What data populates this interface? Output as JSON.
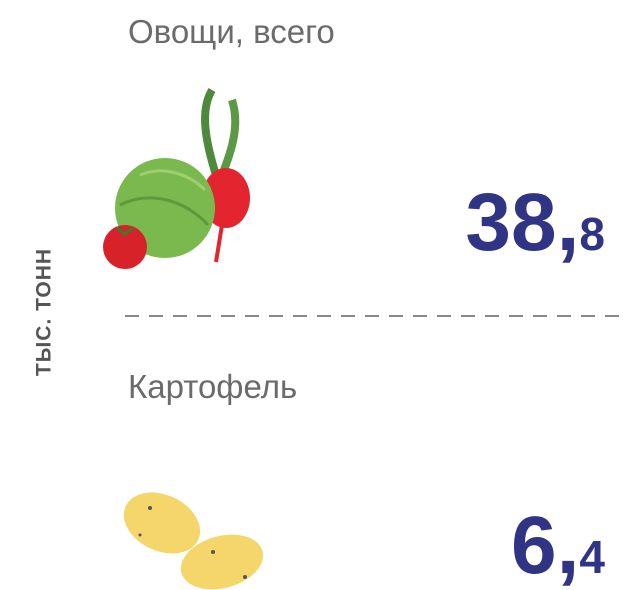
{
  "unit": "ТЫС. ТОНН",
  "items": [
    {
      "label": "Овощи, всего",
      "value": {
        "whole": "38,",
        "fraction": "8"
      }
    },
    {
      "label": "Картофель",
      "value": {
        "whole": "6,",
        "fraction": "4"
      }
    }
  ]
}
